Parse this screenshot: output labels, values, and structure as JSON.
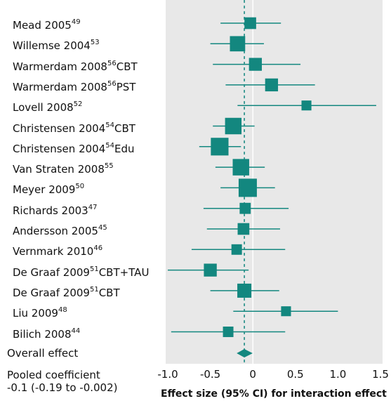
{
  "chart_data": {
    "type": "forest",
    "xlim": [
      -1.0,
      1.5
    ],
    "xticks": [
      "-1.0",
      "-0.5",
      "0",
      "0.5",
      "1.0",
      "1.5"
    ],
    "xtick_values": [
      -1.0,
      -0.5,
      0,
      0.5,
      1.0,
      1.5
    ],
    "xlabel": "Effect size (95% CI) for interaction effect",
    "reference_line": -0.1,
    "studies": [
      {
        "name": "Mead 2005",
        "ref": "49",
        "suffix": "",
        "est": -0.03,
        "lo": -0.38,
        "hi": 0.33,
        "weight": 0.45
      },
      {
        "name": "Willemse 2004",
        "ref": "53",
        "suffix": "",
        "est": -0.18,
        "lo": -0.5,
        "hi": 0.13,
        "weight": 0.75
      },
      {
        "name": "Warmerdam 2008",
        "ref": "56",
        "suffix": "CBT",
        "est": 0.03,
        "lo": -0.47,
        "hi": 0.56,
        "weight": 0.55
      },
      {
        "name": "Warmerdam 2008",
        "ref": "56",
        "suffix": "PST",
        "est": 0.22,
        "lo": -0.32,
        "hi": 0.73,
        "weight": 0.55
      },
      {
        "name": "Lovell 2008",
        "ref": "52",
        "suffix": "",
        "est": 0.63,
        "lo": -0.18,
        "hi": 1.45,
        "weight": 0.3
      },
      {
        "name": "Christensen 2004",
        "ref": "54",
        "suffix": "CBT",
        "est": -0.23,
        "lo": -0.47,
        "hi": 0.02,
        "weight": 0.85
      },
      {
        "name": "Christensen 2004",
        "ref": "54",
        "suffix": "Edu",
        "est": -0.39,
        "lo": -0.63,
        "hi": -0.14,
        "weight": 0.95
      },
      {
        "name": "Van Straten 2008",
        "ref": "55",
        "suffix": "",
        "est": -0.14,
        "lo": -0.44,
        "hi": 0.14,
        "weight": 0.85
      },
      {
        "name": "Meyer 2009",
        "ref": "50",
        "suffix": "",
        "est": -0.06,
        "lo": -0.38,
        "hi": 0.26,
        "weight": 1.0
      },
      {
        "name": "Richards 2003",
        "ref": "47",
        "suffix": "",
        "est": -0.09,
        "lo": -0.58,
        "hi": 0.42,
        "weight": 0.4
      },
      {
        "name": "Andersson 2005",
        "ref": "45",
        "suffix": "",
        "est": -0.11,
        "lo": -0.54,
        "hi": 0.32,
        "weight": 0.45
      },
      {
        "name": "Vernmark 2010",
        "ref": "46",
        "suffix": "",
        "est": -0.19,
        "lo": -0.72,
        "hi": 0.38,
        "weight": 0.35
      },
      {
        "name": "De Graaf 2009",
        "ref": "51",
        "suffix": "CBT+TAU",
        "est": -0.5,
        "lo": -1.0,
        "hi": -0.05,
        "weight": 0.55
      },
      {
        "name": "De Graaf 2009",
        "ref": "51",
        "suffix": "CBT",
        "est": -0.1,
        "lo": -0.5,
        "hi": 0.31,
        "weight": 0.65
      },
      {
        "name": "Liu 2009",
        "ref": "48",
        "suffix": "",
        "est": 0.39,
        "lo": -0.23,
        "hi": 1.0,
        "weight": 0.3
      },
      {
        "name": "Bilich 2008",
        "ref": "44",
        "suffix": "",
        "est": -0.29,
        "lo": -0.96,
        "hi": 0.38,
        "weight": 0.35
      }
    ],
    "overall": {
      "label": "Overall effect",
      "est": -0.1,
      "lo": -0.19,
      "hi": -0.002
    },
    "pooled_line1": "Pooled coefficient",
    "pooled_line2": "-0.1 (-0.19 to -0.002)",
    "colors": {
      "marker": "#13877f",
      "panel": "#e8e8e8"
    }
  }
}
